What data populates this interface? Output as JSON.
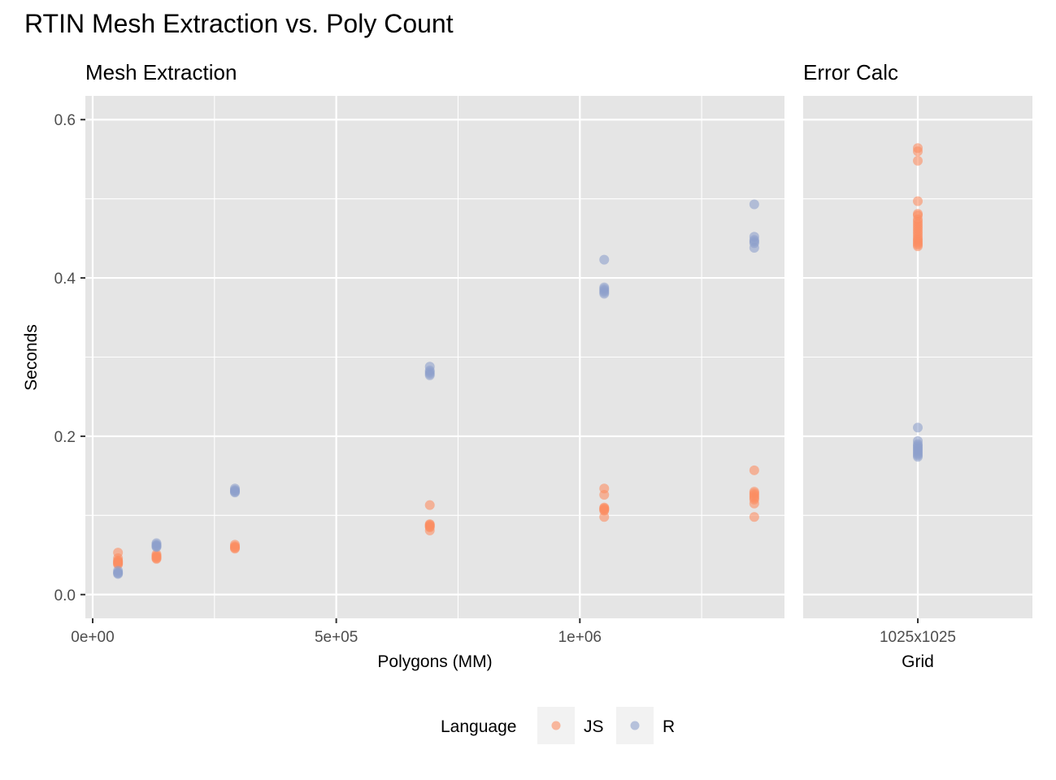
{
  "title": "RTIN Mesh Extraction vs. Poly Count",
  "chart_data": [
    {
      "type": "scatter",
      "facet_title": "Mesh Extraction",
      "xlabel": "Polygons (MM)",
      "ylabel": "Seconds",
      "xlim": [
        -15000,
        1420000
      ],
      "ylim": [
        -0.03,
        0.63
      ],
      "x_ticks": [
        0,
        500000,
        1000000
      ],
      "x_tick_labels": [
        "0e+00",
        "5e+05",
        "1e+06"
      ],
      "y_ticks": [
        0.0,
        0.2,
        0.4,
        0.6
      ],
      "y_tick_labels": [
        "0.0",
        "0.2",
        "0.4",
        "0.6"
      ],
      "grid": true,
      "series": [
        {
          "name": "JS",
          "points": [
            [
              52000,
              0.053
            ],
            [
              52000,
              0.046
            ],
            [
              52000,
              0.043
            ],
            [
              52000,
              0.042
            ],
            [
              52000,
              0.041
            ],
            [
              52000,
              0.04
            ],
            [
              52000,
              0.039
            ],
            [
              52000,
              0.038
            ],
            [
              131000,
              0.051
            ],
            [
              131000,
              0.049
            ],
            [
              131000,
              0.048
            ],
            [
              131000,
              0.047
            ],
            [
              131000,
              0.046
            ],
            [
              131000,
              0.045
            ],
            [
              292000,
              0.063
            ],
            [
              292000,
              0.061
            ],
            [
              292000,
              0.06
            ],
            [
              292000,
              0.059
            ],
            [
              292000,
              0.058
            ],
            [
              692000,
              0.113
            ],
            [
              692000,
              0.089
            ],
            [
              692000,
              0.088
            ],
            [
              692000,
              0.087
            ],
            [
              692000,
              0.086
            ],
            [
              692000,
              0.085
            ],
            [
              692000,
              0.081
            ],
            [
              1050000,
              0.134
            ],
            [
              1050000,
              0.126
            ],
            [
              1050000,
              0.11
            ],
            [
              1050000,
              0.109
            ],
            [
              1050000,
              0.108
            ],
            [
              1050000,
              0.107
            ],
            [
              1050000,
              0.106
            ],
            [
              1050000,
              0.098
            ],
            [
              1358000,
              0.157
            ],
            [
              1358000,
              0.13
            ],
            [
              1358000,
              0.128
            ],
            [
              1358000,
              0.126
            ],
            [
              1358000,
              0.124
            ],
            [
              1358000,
              0.122
            ],
            [
              1358000,
              0.12
            ],
            [
              1358000,
              0.115
            ],
            [
              1358000,
              0.098
            ]
          ]
        },
        {
          "name": "R",
          "points": [
            [
              52000,
              0.03
            ],
            [
              52000,
              0.028
            ],
            [
              52000,
              0.027
            ],
            [
              52000,
              0.026
            ],
            [
              131000,
              0.065
            ],
            [
              131000,
              0.063
            ],
            [
              131000,
              0.062
            ],
            [
              131000,
              0.061
            ],
            [
              131000,
              0.06
            ],
            [
              292000,
              0.134
            ],
            [
              292000,
              0.132
            ],
            [
              292000,
              0.131
            ],
            [
              292000,
              0.13
            ],
            [
              292000,
              0.129
            ],
            [
              692000,
              0.288
            ],
            [
              692000,
              0.283
            ],
            [
              692000,
              0.281
            ],
            [
              692000,
              0.279
            ],
            [
              692000,
              0.277
            ],
            [
              1050000,
              0.423
            ],
            [
              1050000,
              0.388
            ],
            [
              1050000,
              0.386
            ],
            [
              1050000,
              0.384
            ],
            [
              1050000,
              0.382
            ],
            [
              1050000,
              0.38
            ],
            [
              1358000,
              0.493
            ],
            [
              1358000,
              0.452
            ],
            [
              1358000,
              0.448
            ],
            [
              1358000,
              0.446
            ],
            [
              1358000,
              0.444
            ],
            [
              1358000,
              0.438
            ]
          ]
        }
      ]
    },
    {
      "type": "scatter",
      "facet_title": "Error Calc",
      "xlabel": "Grid",
      "ylabel": "Seconds",
      "categories": [
        "1025x1025"
      ],
      "ylim": [
        -0.03,
        0.63
      ],
      "grid": true,
      "series": [
        {
          "name": "JS",
          "points": [
            [
              "1025x1025",
              0.564
            ],
            [
              "1025x1025",
              0.56
            ],
            [
              "1025x1025",
              0.548
            ],
            [
              "1025x1025",
              0.497
            ],
            [
              "1025x1025",
              0.481
            ],
            [
              "1025x1025",
              0.479
            ],
            [
              "1025x1025",
              0.474
            ],
            [
              "1025x1025",
              0.471
            ],
            [
              "1025x1025",
              0.468
            ],
            [
              "1025x1025",
              0.465
            ],
            [
              "1025x1025",
              0.462
            ],
            [
              "1025x1025",
              0.459
            ],
            [
              "1025x1025",
              0.456
            ],
            [
              "1025x1025",
              0.453
            ],
            [
              "1025x1025",
              0.45
            ],
            [
              "1025x1025",
              0.448
            ],
            [
              "1025x1025",
              0.446
            ],
            [
              "1025x1025",
              0.444
            ],
            [
              "1025x1025",
              0.442
            ],
            [
              "1025x1025",
              0.44
            ]
          ]
        },
        {
          "name": "R",
          "points": [
            [
              "1025x1025",
              0.211
            ],
            [
              "1025x1025",
              0.194
            ],
            [
              "1025x1025",
              0.19
            ],
            [
              "1025x1025",
              0.188
            ],
            [
              "1025x1025",
              0.186
            ],
            [
              "1025x1025",
              0.184
            ],
            [
              "1025x1025",
              0.182
            ],
            [
              "1025x1025",
              0.18
            ],
            [
              "1025x1025",
              0.178
            ],
            [
              "1025x1025",
              0.176
            ],
            [
              "1025x1025",
              0.174
            ]
          ]
        }
      ]
    }
  ],
  "legend": {
    "title": "Language",
    "position": "bottom",
    "items": [
      {
        "label": "JS",
        "color": "#fc8d62"
      },
      {
        "label": "R",
        "color": "#8da0cb"
      }
    ]
  },
  "point_opacity": 0.6
}
